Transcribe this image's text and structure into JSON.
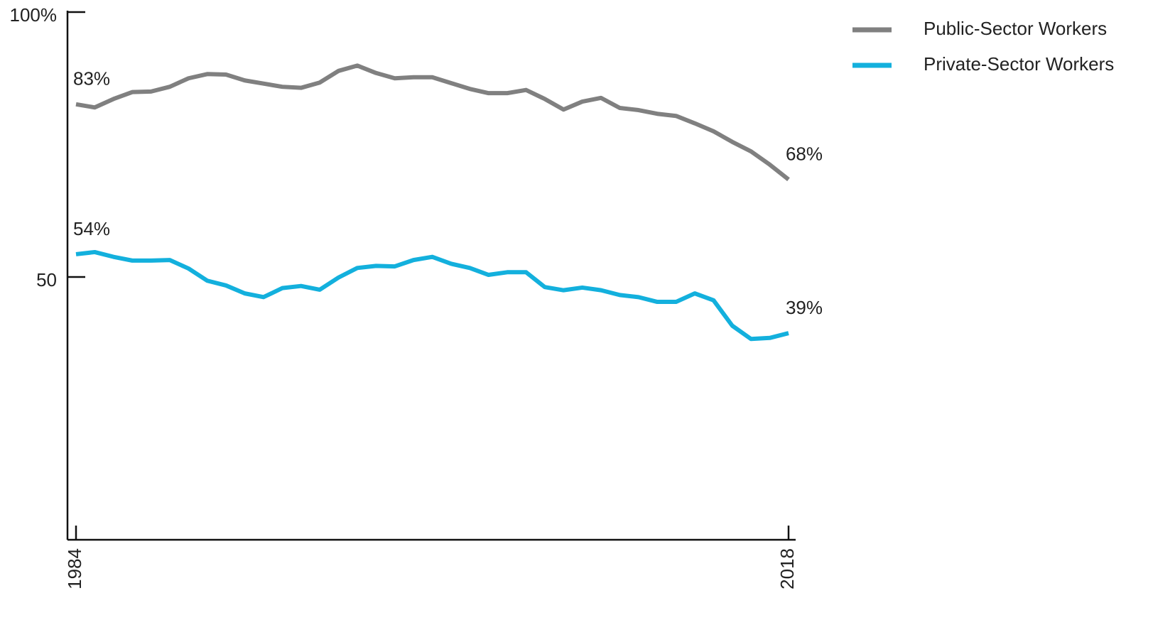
{
  "chart_data": {
    "type": "line",
    "categories": [
      "1984",
      null,
      null,
      null,
      null,
      null,
      null,
      null,
      null,
      null,
      null,
      null,
      null,
      null,
      null,
      null,
      null,
      null,
      null,
      null,
      null,
      null,
      null,
      null,
      null,
      null,
      null,
      null,
      null,
      null,
      null,
      null,
      null,
      null,
      null,
      null,
      null,
      null,
      "2018"
    ],
    "series": [
      {
        "name": "Public-Sector Workers",
        "color": "#808080",
        "values": [
          82.6,
          82.0,
          83.6,
          84.9,
          85.0,
          85.9,
          87.5,
          88.3,
          88.2,
          87.1,
          86.5,
          85.9,
          85.7,
          86.7,
          88.9,
          89.9,
          88.5,
          87.5,
          87.7,
          87.7,
          86.6,
          85.5,
          84.7,
          84.7,
          85.3,
          83.6,
          81.6,
          83.1,
          83.8,
          81.9,
          81.5,
          80.8,
          80.4,
          79.0,
          77.5,
          75.5,
          73.7,
          71.2,
          68.4
        ],
        "value_labels": [
          "83%",
          null,
          null,
          null,
          null,
          null,
          null,
          null,
          null,
          null,
          null,
          null,
          null,
          null,
          null,
          null,
          null,
          null,
          null,
          null,
          null,
          null,
          null,
          null,
          null,
          null,
          null,
          null,
          null,
          null,
          null,
          null,
          null,
          null,
          null,
          null,
          null,
          null,
          "68%"
        ]
      },
      {
        "name": "Private-Sector Workers",
        "color": "#13b0dd",
        "values": [
          54.3,
          54.7,
          53.8,
          53.1,
          53.1,
          53.2,
          51.6,
          49.3,
          48.4,
          46.9,
          46.2,
          47.9,
          48.3,
          47.6,
          49.9,
          51.7,
          52.1,
          52.0,
          53.2,
          53.8,
          52.5,
          51.7,
          50.4,
          50.9,
          50.9,
          48.1,
          47.5,
          48.0,
          47.5,
          46.6,
          46.2,
          45.3,
          45.3,
          46.9,
          45.6,
          40.8,
          38.3,
          38.5,
          39.4
        ],
        "value_labels": [
          "54%",
          null,
          null,
          null,
          null,
          null,
          null,
          null,
          null,
          null,
          null,
          null,
          null,
          null,
          null,
          null,
          null,
          null,
          null,
          null,
          null,
          null,
          null,
          null,
          null,
          null,
          null,
          null,
          null,
          null,
          null,
          null,
          null,
          null,
          null,
          null,
          null,
          null,
          "39%"
        ]
      }
    ],
    "ylim": [
      0,
      100
    ],
    "yticks": [
      {
        "value": 100,
        "label": "100%"
      },
      50
    ],
    "legend": "top-right"
  }
}
